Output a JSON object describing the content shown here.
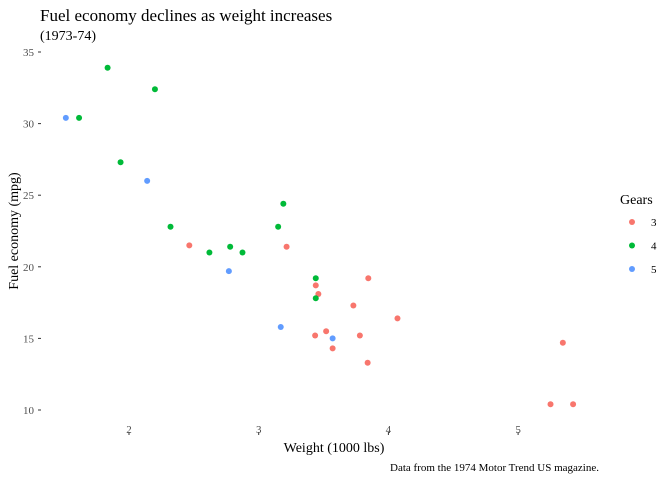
{
  "chart_data": {
    "type": "scatter",
    "title": "Fuel economy declines as weight increases",
    "subtitle": "(1973-74)",
    "caption": "Data from the 1974 Motor Trend US magazine.",
    "xlabel": "Weight (1000 lbs)",
    "ylabel": "Fuel economy (mpg)",
    "xlim": [
      1.513,
      5.424
    ],
    "ylim": [
      10.4,
      33.9
    ],
    "x_ticks": [
      2,
      3,
      4,
      5
    ],
    "y_ticks": [
      10,
      15,
      20,
      25,
      30,
      35
    ],
    "grid": false,
    "legend": {
      "title": "Gears",
      "position": "right"
    },
    "series": [
      {
        "name": "3",
        "color": "#F8766D",
        "points": [
          [
            3.215,
            21.4
          ],
          [
            3.44,
            18.7
          ],
          [
            3.46,
            18.1
          ],
          [
            3.57,
            14.3
          ],
          [
            4.07,
            16.4
          ],
          [
            3.73,
            17.3
          ],
          [
            3.78,
            15.2
          ],
          [
            5.25,
            10.4
          ],
          [
            5.424,
            10.4
          ],
          [
            5.345,
            14.7
          ],
          [
            2.465,
            21.5
          ],
          [
            3.52,
            15.5
          ],
          [
            3.435,
            15.2
          ],
          [
            3.84,
            13.3
          ],
          [
            3.845,
            19.2
          ]
        ]
      },
      {
        "name": "4",
        "color": "#00BA38",
        "points": [
          [
            2.62,
            21.0
          ],
          [
            2.875,
            21.0
          ],
          [
            2.32,
            22.8
          ],
          [
            3.19,
            24.4
          ],
          [
            3.15,
            22.8
          ],
          [
            3.44,
            19.2
          ],
          [
            3.44,
            17.8
          ],
          [
            2.2,
            32.4
          ],
          [
            1.615,
            30.4
          ],
          [
            1.835,
            33.9
          ],
          [
            1.935,
            27.3
          ],
          [
            2.78,
            21.4
          ]
        ]
      },
      {
        "name": "5",
        "color": "#619CFF",
        "points": [
          [
            2.14,
            26.0
          ],
          [
            1.513,
            30.4
          ],
          [
            3.17,
            15.8
          ],
          [
            2.77,
            19.7
          ],
          [
            3.57,
            15.0
          ]
        ]
      }
    ]
  }
}
